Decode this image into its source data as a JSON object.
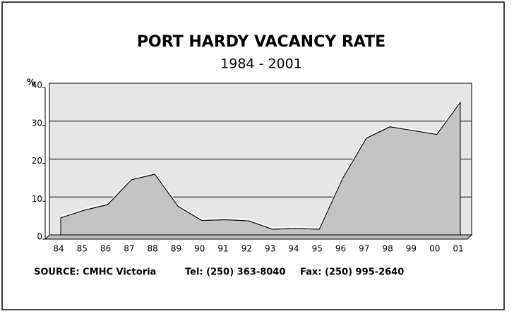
{
  "chart_data": {
    "type": "area",
    "title": "PORT HARDY VACANCY RATE",
    "subtitle": "1984 - 2001",
    "y_label": "%",
    "source": "SOURCE: CMHC Victoria",
    "tel": "Tel: (250) 363-8040",
    "fax": "Fax: (250) 995-2640",
    "categories": [
      "84",
      "85",
      "86",
      "87",
      "88",
      "89",
      "90",
      "91",
      "92",
      "93",
      "94",
      "95",
      "96",
      "97",
      "98",
      "99",
      "00",
      "01"
    ],
    "values": [
      4.5,
      6.5,
      8,
      14.5,
      16,
      7.5,
      3.8,
      4,
      3.7,
      1.5,
      1.7,
      1.5,
      15,
      25.5,
      28.5,
      27.5,
      26.5,
      35
    ],
    "color": "#c4c4c4",
    "ylim": [
      0,
      40
    ],
    "yticks": [
      0,
      10,
      20,
      30,
      40
    ],
    "grid": true
  }
}
